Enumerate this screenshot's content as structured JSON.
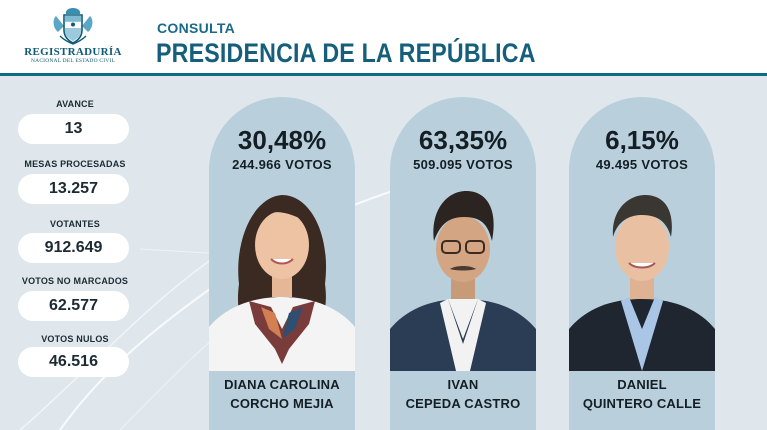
{
  "header": {
    "logo_name": "REGISTRADURÍA",
    "logo_subtitle": "NACIONAL DEL ESTADO CIVIL",
    "eyebrow": "CONSULTA",
    "title": "PRESIDENCIA DE LA REPÚBLICA"
  },
  "stats": [
    {
      "label": "AVANCE",
      "value": "13"
    },
    {
      "label": "MESAS PROCESADAS",
      "value": "13.257"
    },
    {
      "label": "VOTANTES",
      "value": "912.649"
    },
    {
      "label": "VOTOS NO MARCADOS",
      "value": "62.577"
    },
    {
      "label": "VOTOS NULOS",
      "value": "46.516"
    }
  ],
  "candidates": [
    {
      "percent": "30,48%",
      "votes": "244.966 VOTOS",
      "name_line1": "DIANA CAROLINA",
      "name_line2": "CORCHO MEJIA"
    },
    {
      "percent": "63,35%",
      "votes": "509.095 VOTOS",
      "name_line1": "IVAN",
      "name_line2": "CEPEDA CASTRO"
    },
    {
      "percent": "6,15%",
      "votes": "49.495 VOTOS",
      "name_line1": "DANIEL",
      "name_line2": "QUINTERO CALLE"
    }
  ],
  "colors": {
    "brand": "#155f7d",
    "card": "#b9d0dc",
    "background": "#dfe7ec"
  }
}
